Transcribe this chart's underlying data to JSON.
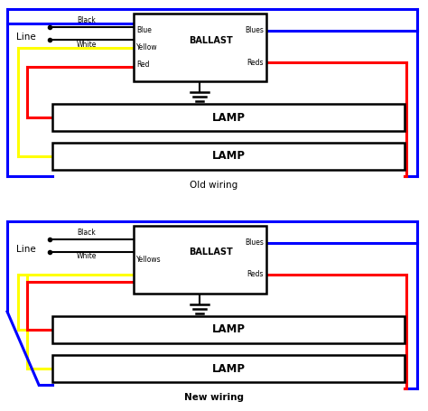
{
  "fig_w": 4.74,
  "fig_h": 4.55,
  "dpi": 100,
  "blue": "#0000FF",
  "red": "#FF0000",
  "yellow": "#FFFF00",
  "black": "#000000",
  "white": "#FFFFFF",
  "lw": 2.2,
  "diagrams": [
    {
      "title": "Old wiring",
      "title_bold": false,
      "ballast_left_labels": [
        "Blue",
        "Yellow",
        "Red"
      ],
      "ballast_right_top": "Blues",
      "ballast_right_bot": "Reds",
      "has_blue_left": true,
      "has_diagonal": false
    },
    {
      "title": "New wiring",
      "title_bold": true,
      "ballast_left_labels": [
        "Yellows"
      ],
      "ballast_right_top": "Blues",
      "ballast_right_bot": "Reds",
      "has_blue_left": false,
      "has_diagonal": true
    }
  ]
}
